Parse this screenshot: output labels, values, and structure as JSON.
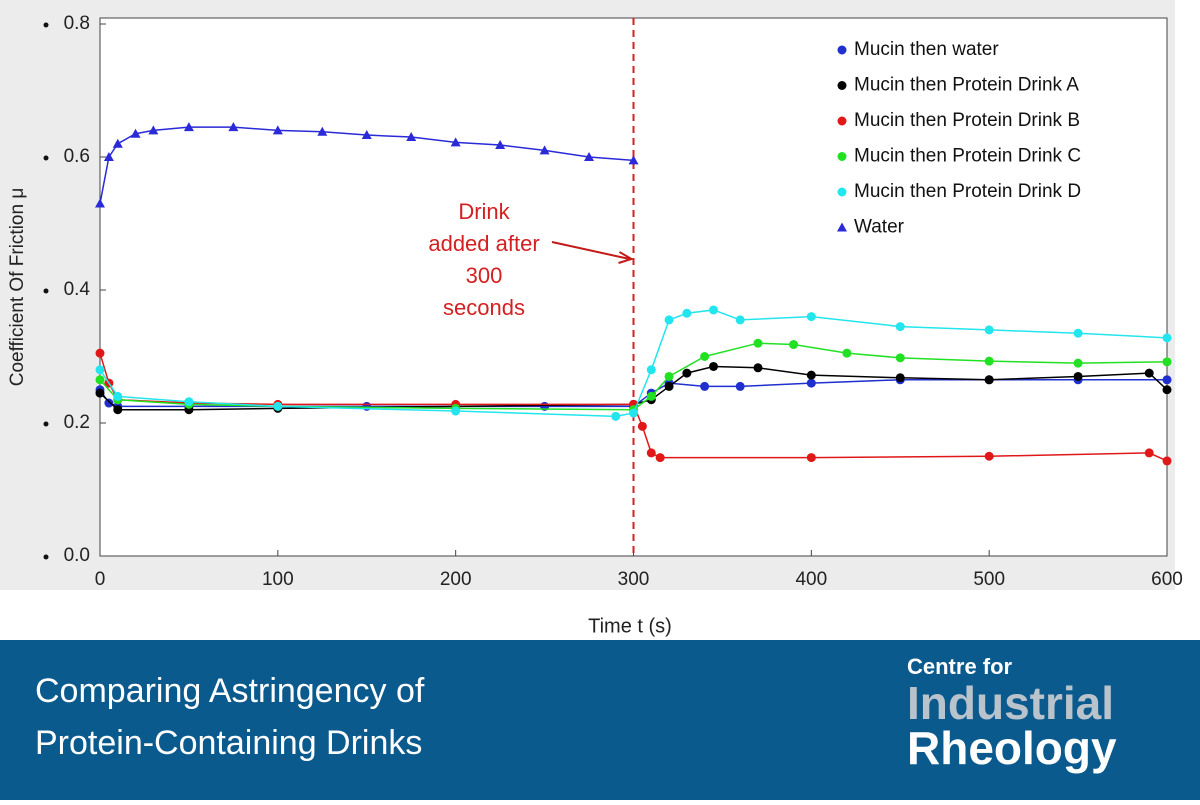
{
  "chart_data": {
    "type": "line",
    "ylabel": "Coefficient Of Friction μ",
    "xlabel": "Time t (s)",
    "xlim": [
      0,
      600
    ],
    "xticks": [
      0,
      100,
      200,
      300,
      400,
      500,
      600
    ],
    "ylim": [
      0,
      0.8
    ],
    "yticks": [
      {
        "value": 0,
        "label": "0.0"
      },
      0.2,
      0.4,
      0.6,
      0.8
    ],
    "vline": 300,
    "annotation": [
      "Drink",
      "added after",
      "300",
      "seconds"
    ],
    "legend": "upper right",
    "series": [
      {
        "name": "Mucin then water",
        "color": "#1f2fd0",
        "marker": "circle",
        "x": [
          0,
          5,
          10,
          50,
          100,
          150,
          200,
          250,
          300,
          310,
          320,
          340,
          360,
          400,
          450,
          500,
          550,
          600
        ],
        "values": [
          0.25,
          0.23,
          0.225,
          0.225,
          0.225,
          0.225,
          0.225,
          0.225,
          0.225,
          0.245,
          0.26,
          0.255,
          0.255,
          0.26,
          0.265,
          0.265,
          0.265,
          0.265
        ]
      },
      {
        "name": "Mucin then Protein Drink A",
        "color": "#000000",
        "marker": "circle",
        "x": [
          0,
          10,
          50,
          100,
          200,
          300,
          310,
          320,
          330,
          345,
          370,
          400,
          450,
          500,
          550,
          590,
          600
        ],
        "values": [
          0.245,
          0.22,
          0.22,
          0.222,
          0.225,
          0.228,
          0.235,
          0.255,
          0.275,
          0.285,
          0.283,
          0.272,
          0.268,
          0.265,
          0.27,
          0.275,
          0.25
        ]
      },
      {
        "name": "Mucin then Protein Drink B",
        "color": "#e01818",
        "marker": "circle",
        "x": [
          0,
          5,
          10,
          50,
          100,
          200,
          300,
          305,
          310,
          315,
          400,
          500,
          590,
          600
        ],
        "values": [
          0.305,
          0.26,
          0.235,
          0.23,
          0.228,
          0.228,
          0.228,
          0.195,
          0.155,
          0.148,
          0.148,
          0.15,
          0.155,
          0.143
        ]
      },
      {
        "name": "Mucin then Protein Drink C",
        "color": "#22e022",
        "marker": "circle",
        "x": [
          0,
          10,
          50,
          100,
          200,
          300,
          310,
          320,
          340,
          370,
          390,
          420,
          450,
          500,
          550,
          600
        ],
        "values": [
          0.265,
          0.235,
          0.228,
          0.225,
          0.222,
          0.22,
          0.24,
          0.27,
          0.3,
          0.32,
          0.318,
          0.305,
          0.298,
          0.293,
          0.29,
          0.292
        ]
      },
      {
        "name": "Mucin then Protein Drink D",
        "color": "#22e5ee",
        "marker": "circle",
        "x": [
          0,
          10,
          50,
          100,
          200,
          290,
          300,
          310,
          320,
          330,
          345,
          360,
          400,
          450,
          500,
          550,
          600
        ],
        "values": [
          0.28,
          0.24,
          0.232,
          0.225,
          0.218,
          0.21,
          0.215,
          0.28,
          0.355,
          0.365,
          0.37,
          0.355,
          0.36,
          0.345,
          0.34,
          0.335,
          0.328
        ]
      },
      {
        "name": "Water",
        "color": "#2a2ad8",
        "marker": "triangle",
        "x": [
          0,
          5,
          10,
          20,
          30,
          50,
          75,
          100,
          125,
          150,
          175,
          200,
          225,
          250,
          275,
          300
        ],
        "values": [
          0.53,
          0.6,
          0.62,
          0.635,
          0.64,
          0.645,
          0.645,
          0.64,
          0.638,
          0.633,
          0.63,
          0.622,
          0.618,
          0.61,
          0.6,
          0.595
        ]
      }
    ]
  },
  "banner": {
    "title": [
      "Comparing Astringency of",
      "Protein-Containing Drinks"
    ],
    "logo": [
      "Centre for",
      "Industrial",
      "Rheology"
    ]
  }
}
